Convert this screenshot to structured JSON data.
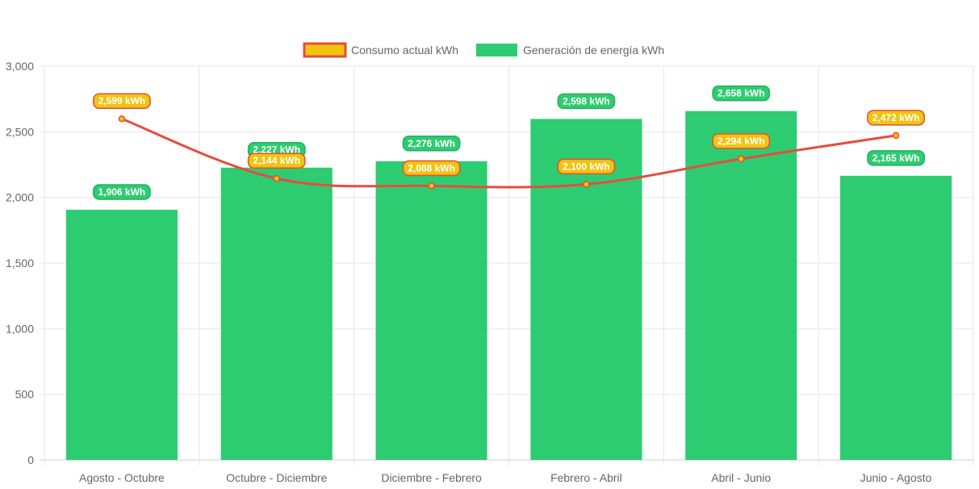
{
  "chart_data": {
    "type": "bar",
    "categories": [
      "Agosto - Octubre",
      "Octubre - Diciembre",
      "Diciembre - Febrero",
      "Febrero - Abril",
      "Abril - Junio",
      "Junio - Agosto"
    ],
    "series": [
      {
        "name": "Consumo actual kWh",
        "type": "line",
        "values": [
          2599,
          2144,
          2088,
          2100,
          2294,
          2472
        ],
        "labels": [
          "2,599 kWh",
          "2,144 kWh",
          "2,088 kWh",
          "2,100 kWh",
          "2,294 kWh",
          "2,472 kWh"
        ],
        "color": "#e74c3c",
        "fill_color": "#f1c40f"
      },
      {
        "name": "Generación de energía kWh",
        "type": "bar",
        "values": [
          1906,
          2227,
          2276,
          2598,
          2658,
          2165
        ],
        "labels": [
          "1,906 kWh",
          "2,227 kWh",
          "2,276 kWh",
          "2,598 kWh",
          "2,658 kWh",
          "2,165 kWh"
        ],
        "color": "#2ecc71"
      }
    ],
    "ylim": [
      0,
      3000
    ],
    "yticks": [
      0,
      500,
      1000,
      1500,
      2000,
      2500,
      3000
    ],
    "ytick_labels": [
      "0",
      "500",
      "1,000",
      "1,500",
      "2,000",
      "2,500",
      "3,000"
    ],
    "grid": true,
    "legend_position": "top"
  }
}
